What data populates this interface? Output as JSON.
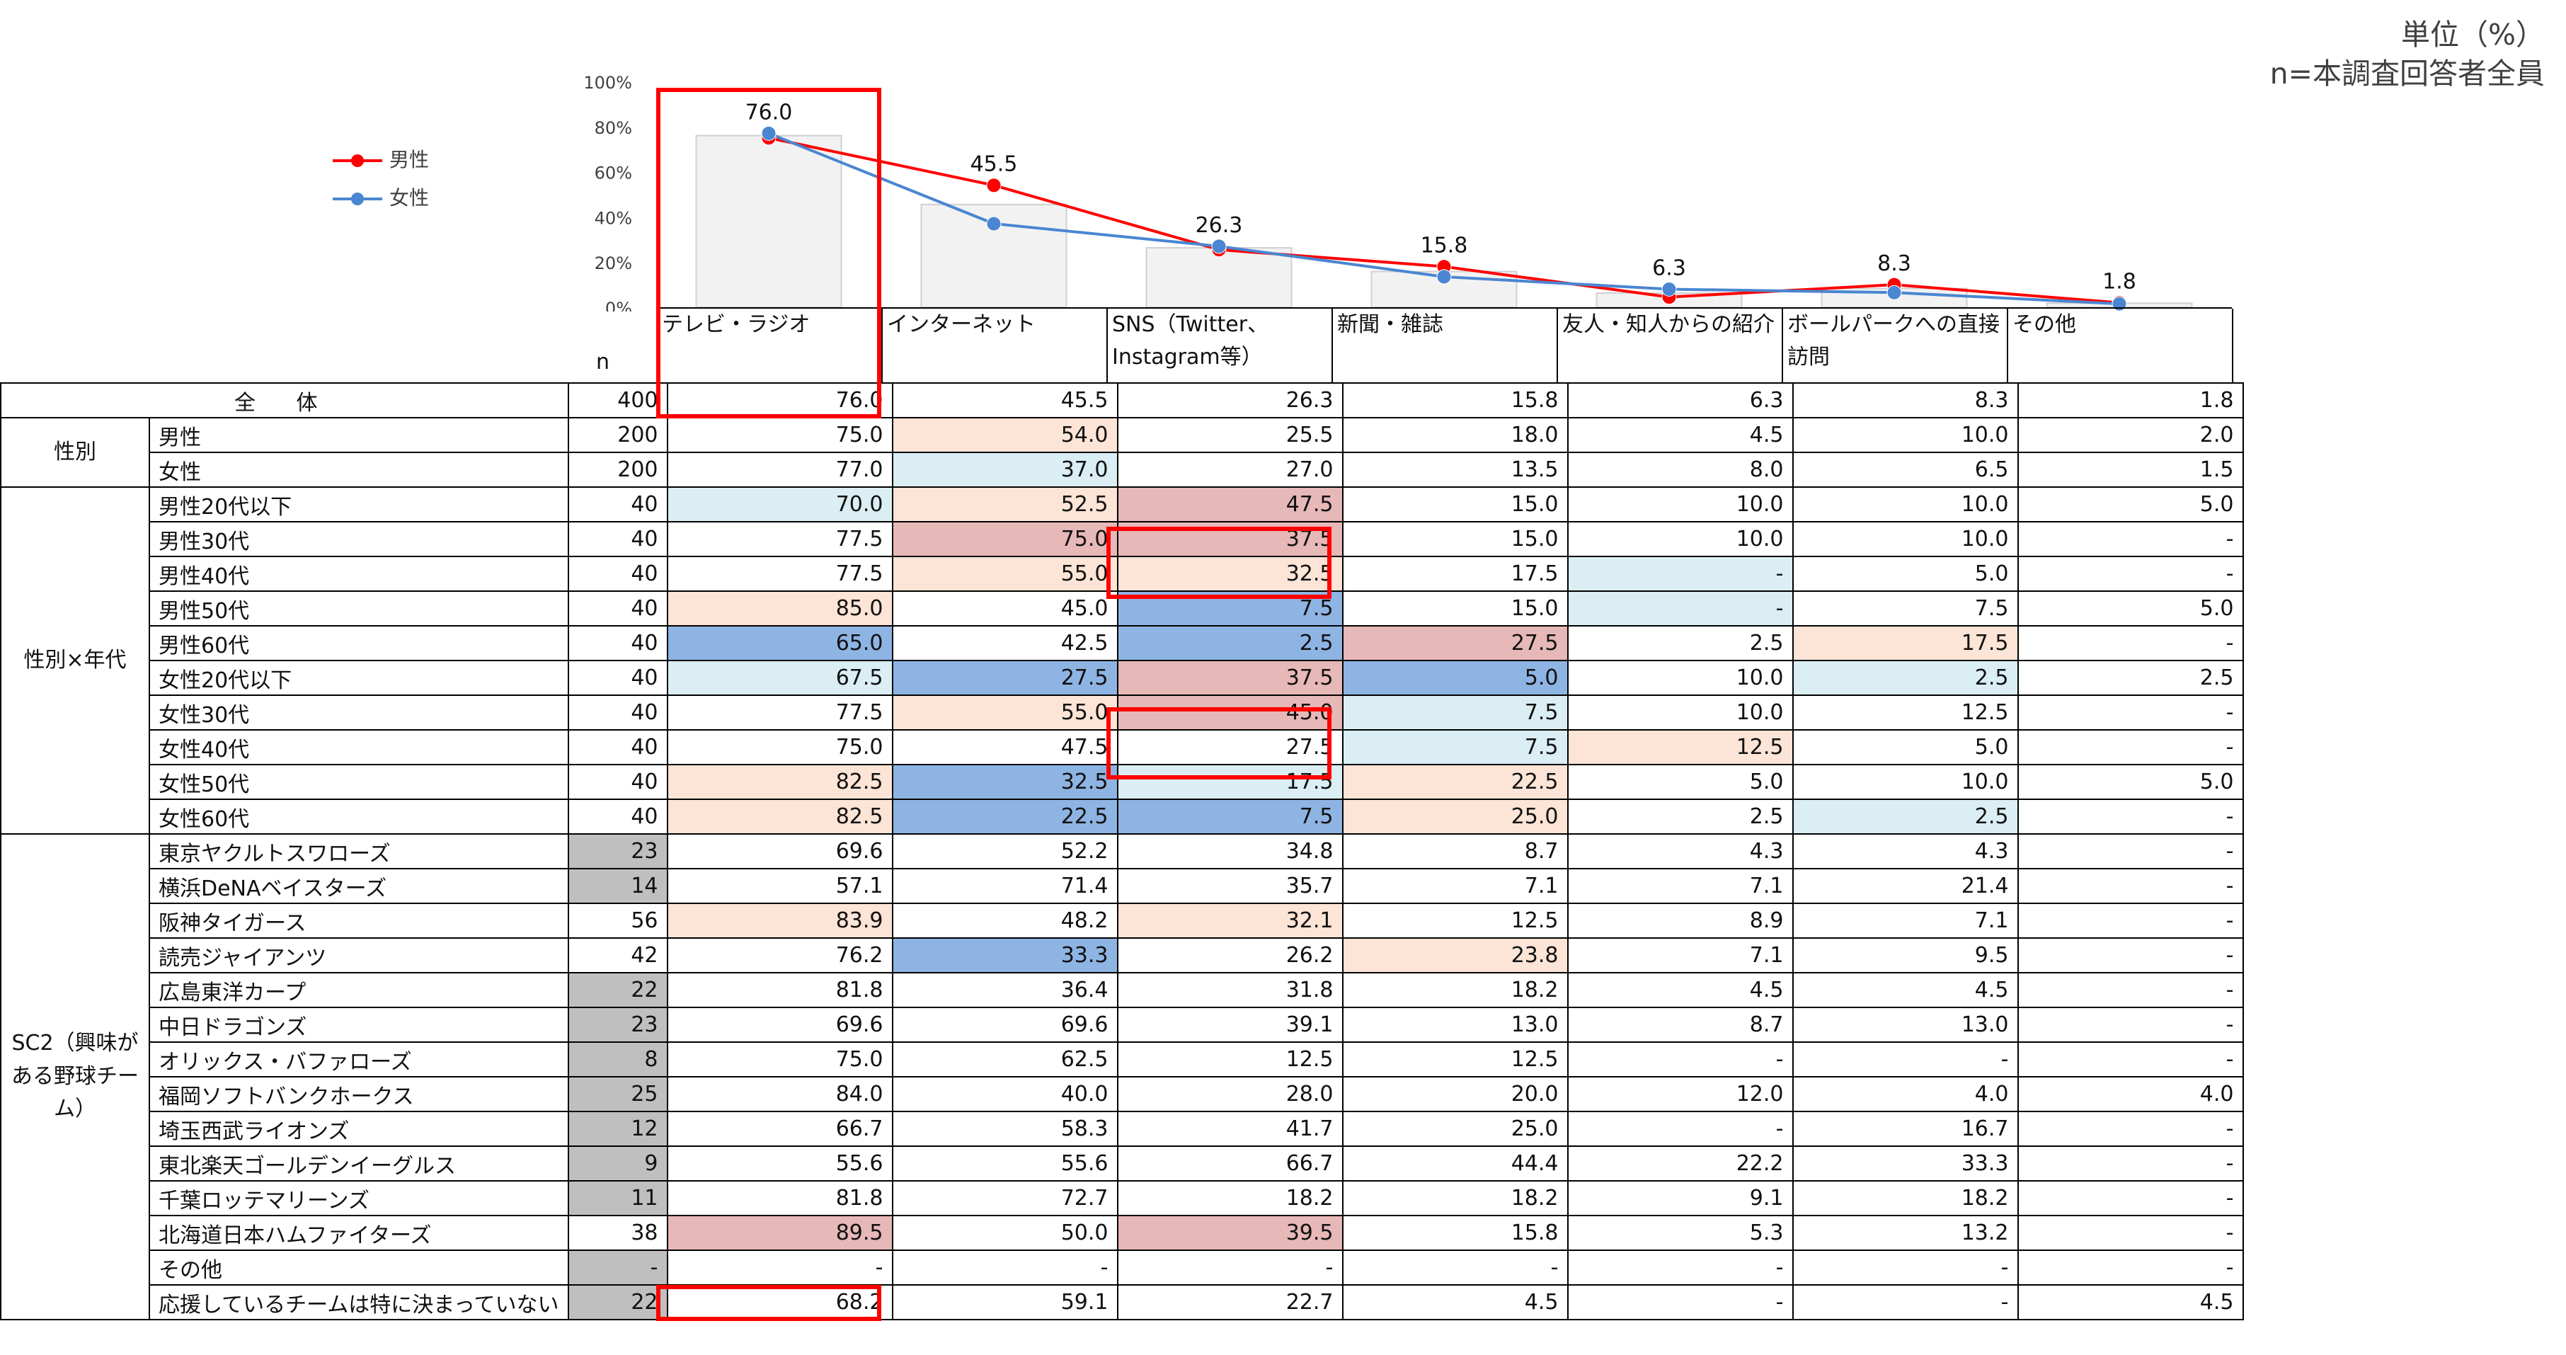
{
  "unit_line1": "単位（%）",
  "unit_line2": "n=本調査回答者全員",
  "legend": [
    {
      "label": "男性",
      "color": "#ff0000"
    },
    {
      "label": "女性",
      "color": "#4a86d1"
    }
  ],
  "columns": [
    "テレビ・ラジオ",
    "インターネット",
    "SNS（Twitter、\nInstagram等）",
    "新聞・雑誌",
    "友人・知人からの紹介",
    "ボールパークへの直接\n訪問",
    "その他"
  ],
  "n_label": "n",
  "chart_data": {
    "type": "bar",
    "categories": [
      "テレビ・ラジオ",
      "インターネット",
      "SNS（Twitter、Instagram等）",
      "新聞・雑誌",
      "友人・知人からの紹介",
      "ボールパークへの直接訪問",
      "その他"
    ],
    "values": [
      76.0,
      45.5,
      26.3,
      15.8,
      6.3,
      8.3,
      1.8
    ],
    "value_labels": [
      "76.0",
      "45.5",
      "26.3",
      "15.8",
      "6.3",
      "8.3",
      "1.8"
    ],
    "series": [
      {
        "name": "男性",
        "type": "line",
        "values": [
          75.0,
          54.0,
          25.5,
          18.0,
          4.5,
          10.0,
          2.0
        ],
        "color": "#ff0000"
      },
      {
        "name": "女性",
        "type": "line",
        "values": [
          77.0,
          37.0,
          27.0,
          13.5,
          8.0,
          6.5,
          1.5
        ],
        "color": "#4a86d1"
      }
    ],
    "ylim": [
      0,
      100
    ],
    "yticks": [
      "100%",
      "80%",
      "60%",
      "40%",
      "20%",
      "0%"
    ],
    "bar_color": "#f2f2f2"
  },
  "table": {
    "total": {
      "label": "全 体",
      "n": "400",
      "values": [
        "76.0",
        "45.5",
        "26.3",
        "15.8",
        "6.3",
        "8.3",
        "1.8"
      ]
    },
    "groups": [
      {
        "label": "性別",
        "rows": [
          {
            "name": "男性",
            "n": "200",
            "values": [
              "75.0",
              "54.0",
              "25.5",
              "18.0",
              "4.5",
              "10.0",
              "2.0"
            ],
            "bg": [
              "",
              "peach",
              "",
              "",
              "",
              "",
              ""
            ]
          },
          {
            "name": "女性",
            "n": "200",
            "values": [
              "77.0",
              "37.0",
              "27.0",
              "13.5",
              "8.0",
              "6.5",
              "1.5"
            ],
            "bg": [
              "",
              "lightblue",
              "",
              "",
              "",
              "",
              ""
            ]
          }
        ]
      },
      {
        "label": "性別×年代",
        "rows": [
          {
            "name": "男性20代以下",
            "n": "40",
            "values": [
              "70.0",
              "52.5",
              "47.5",
              "15.0",
              "10.0",
              "10.0",
              "5.0"
            ],
            "bg": [
              "lightblue",
              "peach",
              "pink",
              "",
              "",
              "",
              ""
            ]
          },
          {
            "name": "男性30代",
            "n": "40",
            "values": [
              "77.5",
              "75.0",
              "37.5",
              "15.0",
              "10.0",
              "10.0",
              "-"
            ],
            "bg": [
              "",
              "pink",
              "pink",
              "",
              "",
              "",
              ""
            ]
          },
          {
            "name": "男性40代",
            "n": "40",
            "values": [
              "77.5",
              "55.0",
              "32.5",
              "17.5",
              "-",
              "5.0",
              "-"
            ],
            "bg": [
              "",
              "peach",
              "peach",
              "",
              "lightblue",
              "",
              ""
            ]
          },
          {
            "name": "男性50代",
            "n": "40",
            "values": [
              "85.0",
              "45.0",
              "7.5",
              "15.0",
              "-",
              "7.5",
              "5.0"
            ],
            "bg": [
              "peach",
              "",
              "blue",
              "",
              "lightblue",
              "",
              ""
            ]
          },
          {
            "name": "男性60代",
            "n": "40",
            "values": [
              "65.0",
              "42.5",
              "2.5",
              "27.5",
              "2.5",
              "17.5",
              "-"
            ],
            "bg": [
              "blue",
              "",
              "blue",
              "pink",
              "",
              "peach",
              ""
            ]
          },
          {
            "name": "女性20代以下",
            "n": "40",
            "values": [
              "67.5",
              "27.5",
              "37.5",
              "5.0",
              "10.0",
              "2.5",
              "2.5"
            ],
            "bg": [
              "lightblue",
              "blue",
              "pink",
              "blue",
              "",
              "lightblue",
              ""
            ]
          },
          {
            "name": "女性30代",
            "n": "40",
            "values": [
              "77.5",
              "55.0",
              "45.0",
              "7.5",
              "10.0",
              "12.5",
              "-"
            ],
            "bg": [
              "",
              "peach",
              "pink",
              "lightblue",
              "",
              "",
              ""
            ]
          },
          {
            "name": "女性40代",
            "n": "40",
            "values": [
              "75.0",
              "47.5",
              "27.5",
              "7.5",
              "12.5",
              "5.0",
              "-"
            ],
            "bg": [
              "",
              "",
              "",
              "lightblue",
              "peach",
              "",
              ""
            ]
          },
          {
            "name": "女性50代",
            "n": "40",
            "values": [
              "82.5",
              "32.5",
              "17.5",
              "22.5",
              "5.0",
              "10.0",
              "5.0"
            ],
            "bg": [
              "peach",
              "blue",
              "lightblue",
              "peach",
              "",
              "",
              ""
            ]
          },
          {
            "name": "女性60代",
            "n": "40",
            "values": [
              "82.5",
              "22.5",
              "7.5",
              "25.0",
              "2.5",
              "2.5",
              "-"
            ],
            "bg": [
              "peach",
              "blue",
              "blue",
              "peach",
              "",
              "lightblue",
              ""
            ]
          }
        ]
      },
      {
        "label": "SC2（興味がある野球チーム）",
        "rows": [
          {
            "name": "東京ヤクルトスワローズ",
            "n": "23",
            "values": [
              "69.6",
              "52.2",
              "34.8",
              "8.7",
              "4.3",
              "4.3",
              "-"
            ],
            "bg": [
              "",
              "",
              "",
              "",
              "",
              "",
              ""
            ],
            "n_gray": true
          },
          {
            "name": "横浜DeNAベイスターズ",
            "n": "14",
            "values": [
              "57.1",
              "71.4",
              "35.7",
              "7.1",
              "7.1",
              "21.4",
              "-"
            ],
            "bg": [
              "",
              "",
              "",
              "",
              "",
              "",
              ""
            ],
            "n_gray": true
          },
          {
            "name": "阪神タイガース",
            "n": "56",
            "values": [
              "83.9",
              "48.2",
              "32.1",
              "12.5",
              "8.9",
              "7.1",
              "-"
            ],
            "bg": [
              "peach",
              "",
              "peach",
              "",
              "",
              "",
              ""
            ],
            "n_gray": false
          },
          {
            "name": "読売ジャイアンツ",
            "n": "42",
            "values": [
              "76.2",
              "33.3",
              "26.2",
              "23.8",
              "7.1",
              "9.5",
              "-"
            ],
            "bg": [
              "",
              "blue",
              "",
              "peach",
              "",
              "",
              ""
            ],
            "n_gray": false
          },
          {
            "name": "広島東洋カープ",
            "n": "22",
            "values": [
              "81.8",
              "36.4",
              "31.8",
              "18.2",
              "4.5",
              "4.5",
              "-"
            ],
            "bg": [
              "",
              "",
              "",
              "",
              "",
              "",
              ""
            ],
            "n_gray": true
          },
          {
            "name": "中日ドラゴンズ",
            "n": "23",
            "values": [
              "69.6",
              "69.6",
              "39.1",
              "13.0",
              "8.7",
              "13.0",
              "-"
            ],
            "bg": [
              "",
              "",
              "",
              "",
              "",
              "",
              ""
            ],
            "n_gray": true
          },
          {
            "name": "オリックス・バファローズ",
            "n": "8",
            "values": [
              "75.0",
              "62.5",
              "12.5",
              "12.5",
              "-",
              "-",
              "-"
            ],
            "bg": [
              "",
              "",
              "",
              "",
              "",
              "",
              ""
            ],
            "n_gray": true
          },
          {
            "name": "福岡ソフトバンクホークス",
            "n": "25",
            "values": [
              "84.0",
              "40.0",
              "28.0",
              "20.0",
              "12.0",
              "4.0",
              "4.0"
            ],
            "bg": [
              "",
              "",
              "",
              "",
              "",
              "",
              ""
            ],
            "n_gray": true
          },
          {
            "name": "埼玉西武ライオンズ",
            "n": "12",
            "values": [
              "66.7",
              "58.3",
              "41.7",
              "25.0",
              "-",
              "16.7",
              "-"
            ],
            "bg": [
              "",
              "",
              "",
              "",
              "",
              "",
              ""
            ],
            "n_gray": true
          },
          {
            "name": "東北楽天ゴールデンイーグルス",
            "n": "9",
            "values": [
              "55.6",
              "55.6",
              "66.7",
              "44.4",
              "22.2",
              "33.3",
              "-"
            ],
            "bg": [
              "",
              "",
              "",
              "",
              "",
              "",
              ""
            ],
            "n_gray": true
          },
          {
            "name": "千葉ロッテマリーンズ",
            "n": "11",
            "values": [
              "81.8",
              "72.7",
              "18.2",
              "18.2",
              "9.1",
              "18.2",
              "-"
            ],
            "bg": [
              "",
              "",
              "",
              "",
              "",
              "",
              ""
            ],
            "n_gray": true
          },
          {
            "name": "北海道日本ハムファイターズ",
            "n": "38",
            "values": [
              "89.5",
              "50.0",
              "39.5",
              "15.8",
              "5.3",
              "13.2",
              "-"
            ],
            "bg": [
              "pink",
              "",
              "pink",
              "",
              "",
              "",
              ""
            ],
            "n_gray": false
          },
          {
            "name": "その他",
            "n": "-",
            "values": [
              "-",
              "-",
              "-",
              "-",
              "-",
              "-",
              "-"
            ],
            "bg": [
              "",
              "",
              "",
              "",
              "",
              "",
              ""
            ],
            "n_gray": true
          },
          {
            "name": "応援しているチームは特に決まっていない",
            "n": "22",
            "values": [
              "68.2",
              "59.1",
              "22.7",
              "4.5",
              "-",
              "-",
              "4.5"
            ],
            "bg": [
              "",
              "",
              "",
              "",
              "",
              "",
              ""
            ],
            "n_gray": true
          }
        ]
      }
    ]
  }
}
